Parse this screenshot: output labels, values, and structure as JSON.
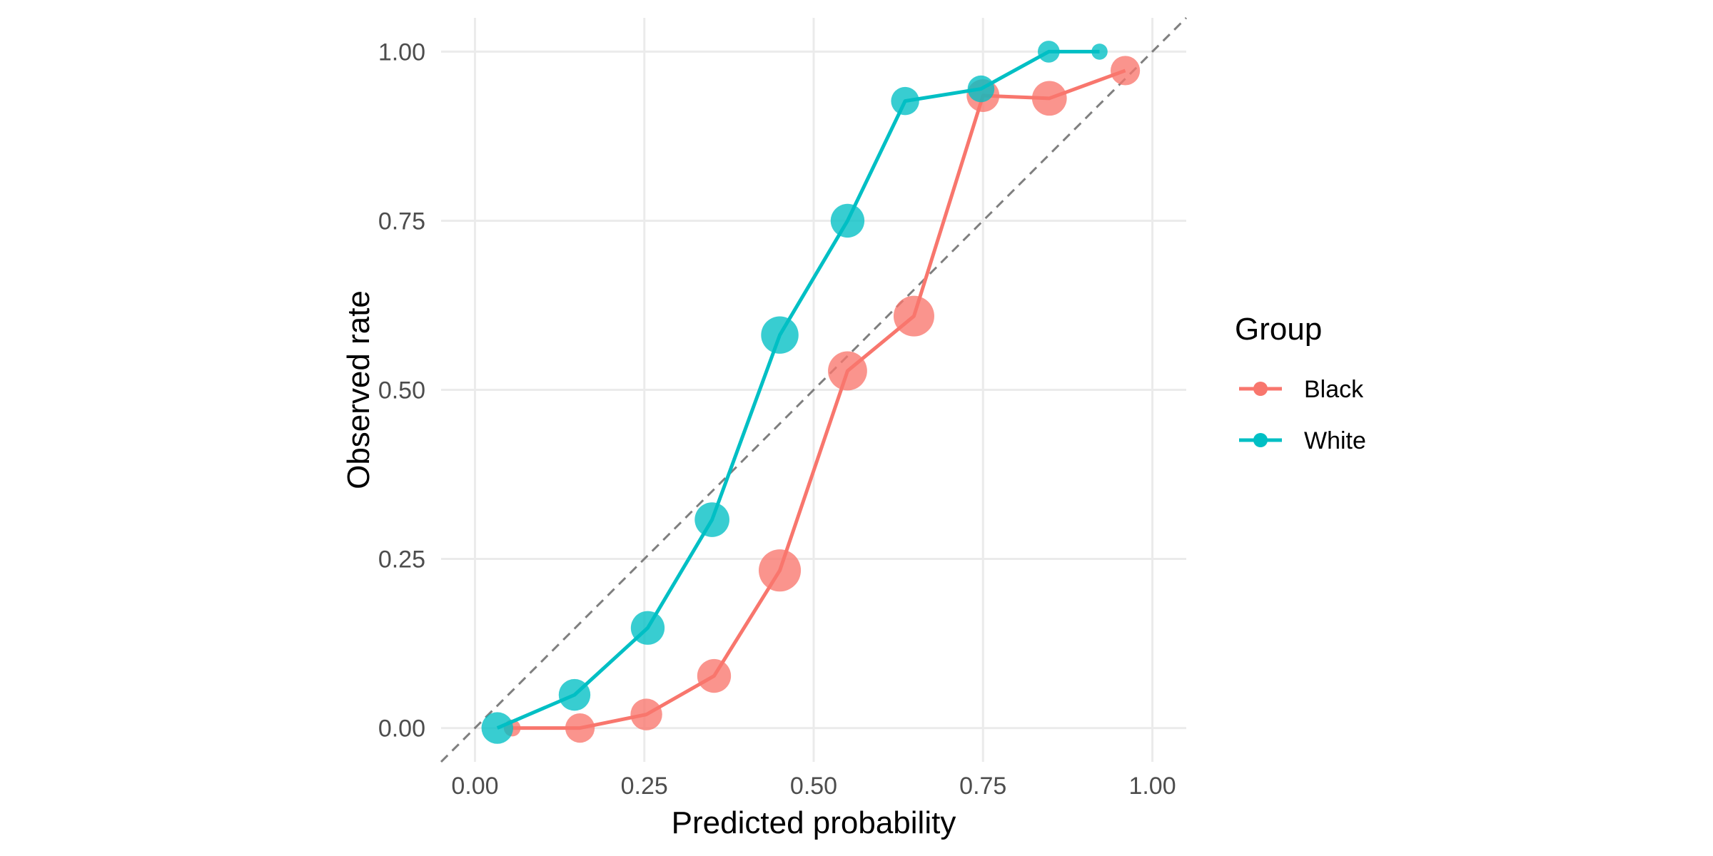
{
  "chart_data": {
    "type": "line",
    "title": "",
    "xlabel": "Predicted probability",
    "ylabel": "Observed rate",
    "xlim": [
      -0.05,
      1.05
    ],
    "ylim": [
      -0.05,
      1.05
    ],
    "x_ticks": [
      0.0,
      0.25,
      0.5,
      0.75,
      1.0
    ],
    "y_ticks": [
      0.0,
      0.25,
      0.5,
      0.75,
      1.0
    ],
    "x_tick_labels": [
      "0.00",
      "0.25",
      "0.50",
      "0.75",
      "1.00"
    ],
    "y_tick_labels": [
      "0.00",
      "0.25",
      "0.50",
      "0.75",
      "1.00"
    ],
    "grid": true,
    "reference_line": {
      "style": "dashed",
      "from": [
        -0.05,
        -0.05
      ],
      "to": [
        1.05,
        1.05
      ],
      "color": "#7f7f7f"
    },
    "legend": {
      "title": "Group",
      "position": "right"
    },
    "series": [
      {
        "name": "Black",
        "color": "#F8766D",
        "points": [
          {
            "x": 0.055,
            "y": 0.0,
            "n": 5
          },
          {
            "x": 0.155,
            "y": 0.0,
            "n": 40
          },
          {
            "x": 0.253,
            "y": 0.02,
            "n": 50
          },
          {
            "x": 0.353,
            "y": 0.077,
            "n": 60
          },
          {
            "x": 0.45,
            "y": 0.233,
            "n": 110
          },
          {
            "x": 0.55,
            "y": 0.528,
            "n": 90
          },
          {
            "x": 0.648,
            "y": 0.609,
            "n": 100
          },
          {
            "x": 0.75,
            "y": 0.935,
            "n": 55
          },
          {
            "x": 0.848,
            "y": 0.931,
            "n": 65
          },
          {
            "x": 0.96,
            "y": 0.972,
            "n": 40
          }
        ]
      },
      {
        "name": "White",
        "color": "#00BFC4",
        "points": [
          {
            "x": 0.033,
            "y": 0.0,
            "n": 50
          },
          {
            "x": 0.147,
            "y": 0.049,
            "n": 50
          },
          {
            "x": 0.255,
            "y": 0.148,
            "n": 60
          },
          {
            "x": 0.35,
            "y": 0.308,
            "n": 65
          },
          {
            "x": 0.45,
            "y": 0.581,
            "n": 80
          },
          {
            "x": 0.55,
            "y": 0.75,
            "n": 60
          },
          {
            "x": 0.635,
            "y": 0.927,
            "n": 35
          },
          {
            "x": 0.747,
            "y": 0.945,
            "n": 30
          },
          {
            "x": 0.847,
            "y": 1.0,
            "n": 15
          },
          {
            "x": 0.922,
            "y": 1.0,
            "n": 4
          }
        ]
      }
    ]
  }
}
